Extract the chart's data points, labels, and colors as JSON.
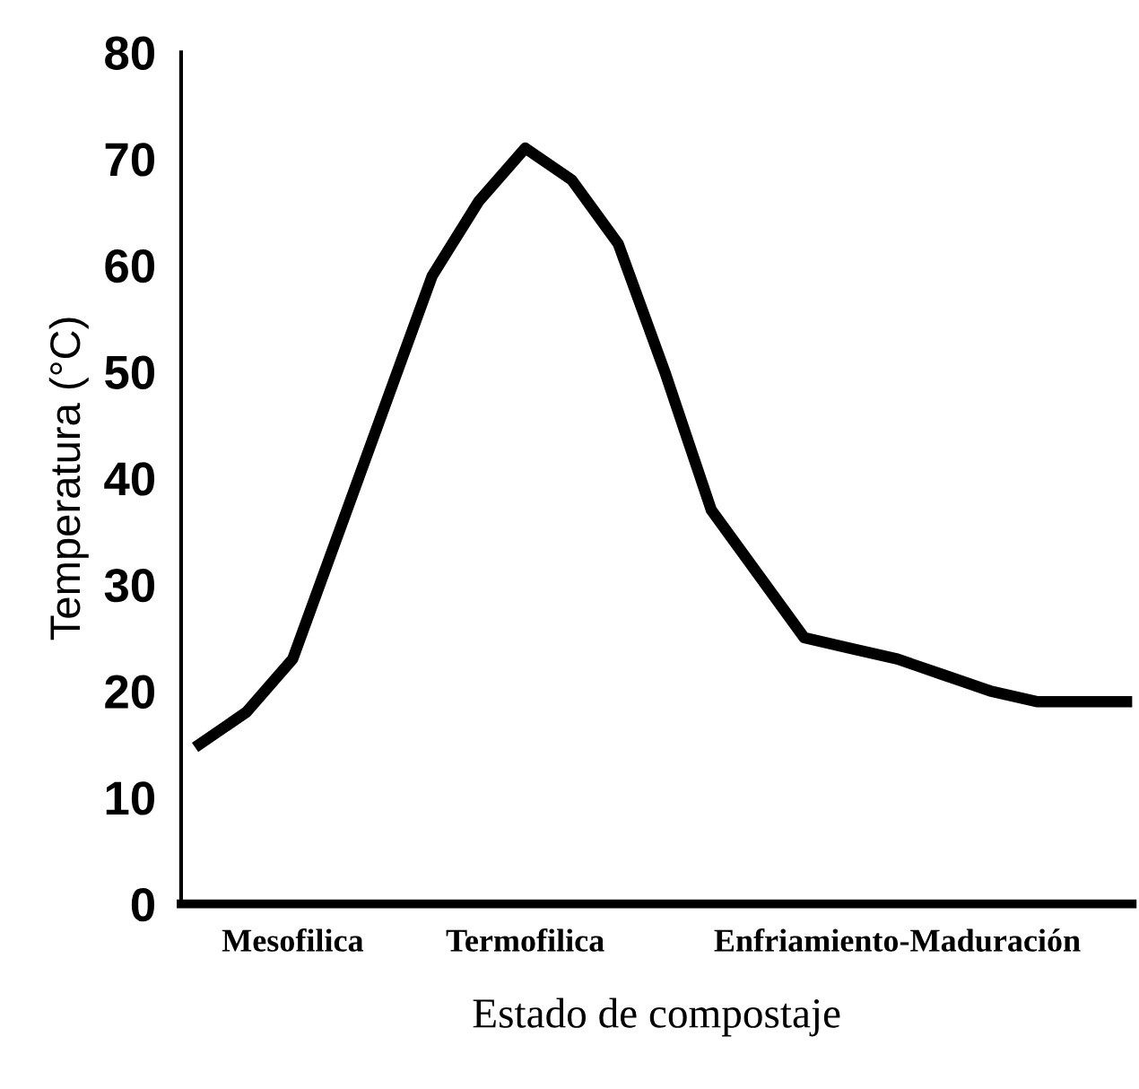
{
  "chart_data": {
    "type": "line",
    "xlabel": "Estado de compostaje",
    "ylabel": "Temperatura (°C)",
    "categories": [
      null,
      null,
      "Mesofilica",
      null,
      null,
      null,
      null,
      "Termofilica",
      null,
      null,
      null,
      null,
      null,
      null,
      null,
      "Enfriamiento-Maduración",
      null,
      null,
      null,
      null,
      null
    ],
    "series": [
      {
        "color": "#000000",
        "values": [
          15,
          18,
          23,
          35,
          47,
          59,
          66,
          71,
          68,
          62,
          50,
          37,
          31,
          25,
          24,
          23,
          21.5,
          20,
          19,
          19,
          19
        ]
      }
    ],
    "ylim": [
      0,
      80
    ],
    "yticks": [
      0,
      10,
      20,
      30,
      40,
      50,
      60,
      70,
      80
    ],
    "grid": false,
    "legend": false,
    "marker": "none",
    "line_style": "solid"
  }
}
